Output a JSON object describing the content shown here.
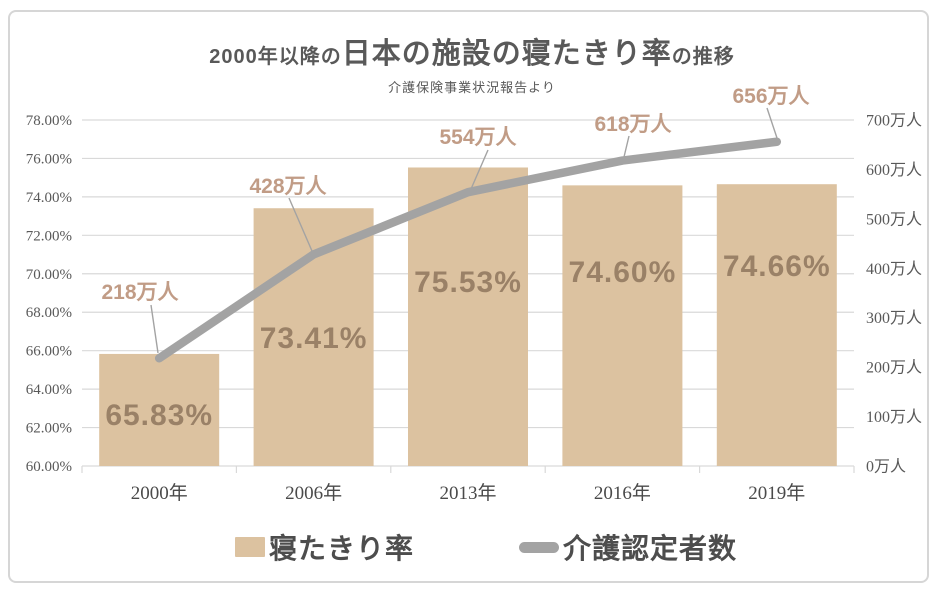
{
  "title": {
    "prefix": "2000年以降の",
    "emphasis": "日本の施設の寝たきり率",
    "suffix": "の推移"
  },
  "subtitle": "介護保険事業状況報告より",
  "legend": {
    "bar": {
      "label": "寝たきり率",
      "color": "#dcc2a0"
    },
    "line": {
      "label": "介護認定者数",
      "color": "#a3a3a3"
    }
  },
  "chart_data": {
    "type": "bar",
    "subtype": "combo-bar-line-dual-axis",
    "title": "2000年以降の日本の施設の寝たきり率の推移",
    "subtitle": "介護保険事業状況報告より",
    "categories": [
      "2000年",
      "2006年",
      "2013年",
      "2016年",
      "2019年"
    ],
    "series": [
      {
        "name": "寝たきり率",
        "type": "bar",
        "axis": "left",
        "unit": "%",
        "values": [
          65.83,
          73.41,
          75.53,
          74.6,
          74.66
        ],
        "data_labels": [
          "65.83%",
          "73.41%",
          "75.53%",
          "74.60%",
          "74.66%"
        ],
        "color": "#dcc2a0",
        "label_color": "#9a8167"
      },
      {
        "name": "介護認定者数",
        "type": "line",
        "axis": "right",
        "unit": "万人",
        "values": [
          218,
          428,
          554,
          618,
          656
        ],
        "data_labels": [
          "218万人",
          "428万人",
          "554万人",
          "618万人",
          "656万人"
        ],
        "color": "#a3a3a3",
        "label_color": "#c19c86"
      }
    ],
    "left_axis": {
      "min": 60,
      "max": 78,
      "step": 2,
      "tick_labels": [
        "78.00%",
        "76.00%",
        "74.00%",
        "72.00%",
        "70.00%",
        "68.00%",
        "66.00%",
        "64.00%",
        "62.00%",
        "60.00%"
      ]
    },
    "right_axis": {
      "min": 0,
      "max": 700,
      "step": 100,
      "tick_labels": [
        "700万人",
        "600万人",
        "500万人",
        "400万人",
        "300万人",
        "200万人",
        "100万人",
        "0万人"
      ]
    },
    "grid": true,
    "legend_position": "bottom",
    "gridline_color": "#d9d9d9",
    "axis_text_color": "#595959"
  }
}
